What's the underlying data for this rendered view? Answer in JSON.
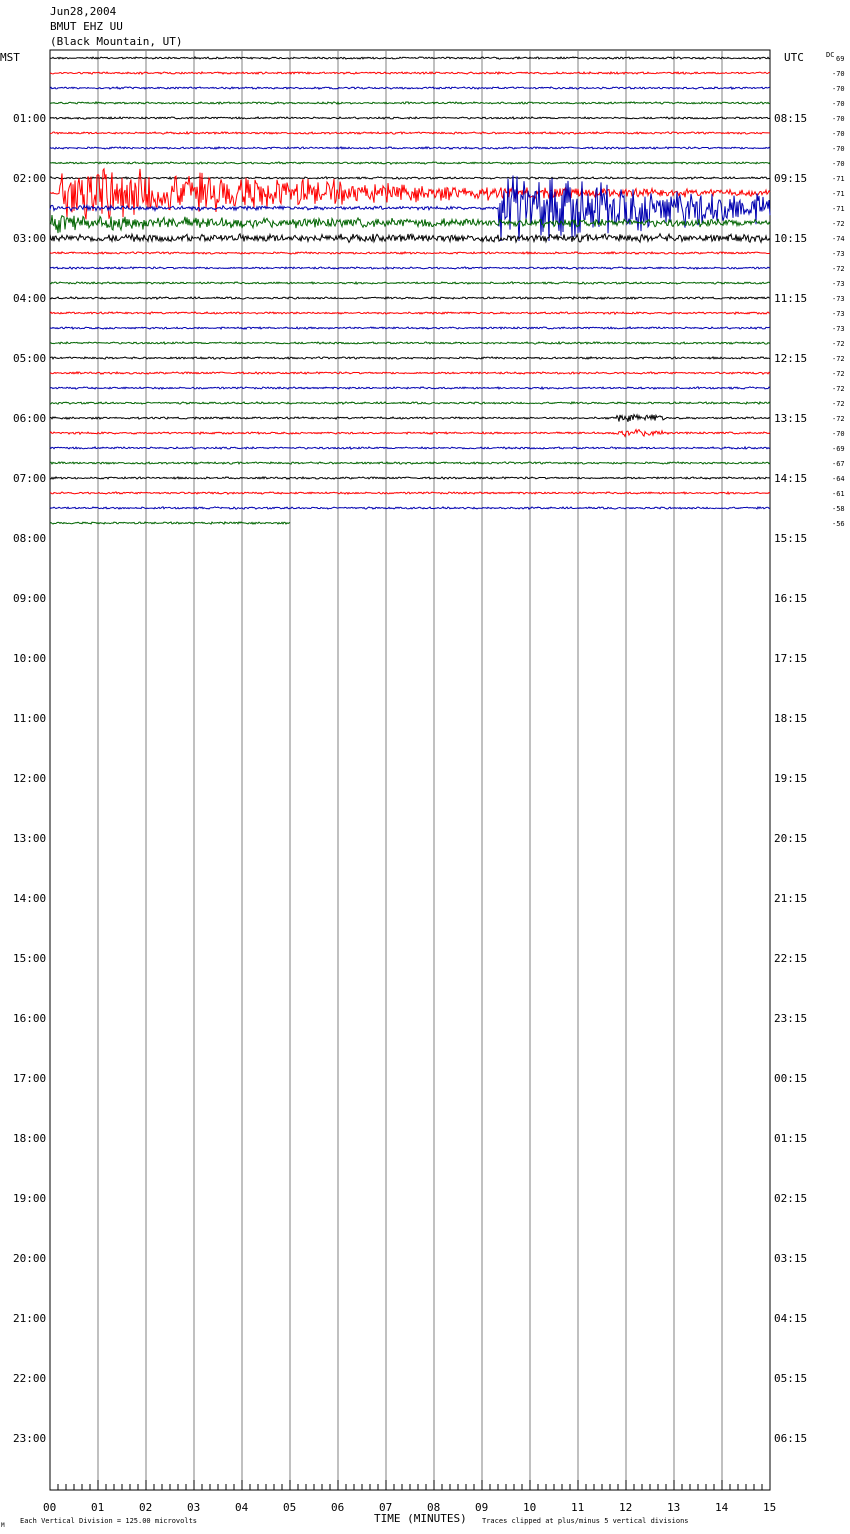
{
  "header": {
    "date": "Jun28,2004",
    "station": "BMUT EHZ UU",
    "location": "(Black Mountain, UT)"
  },
  "left_axis_label": "MST",
  "right_axis_label": "UTC",
  "dc_label": "DC",
  "dc_first": "69",
  "footer": {
    "scale_note": "Each Vertical Division =  125.00 microvolts",
    "time_label": "TIME (MINUTES)",
    "clip_note": "Traces clipped at plus/minus 5 vertical divisions",
    "corner_mark": "M"
  },
  "colors": {
    "black": "#000000",
    "red": "#ff0000",
    "blue": "#0000b0",
    "green": "#006400",
    "grid": "#808080"
  },
  "chart_data": {
    "type": "line",
    "title": "BMUT EHZ UU (Black Mountain, UT) Jun28,2004",
    "xlabel": "TIME (MINUTES)",
    "xlim": [
      0,
      15
    ],
    "x_ticks": [
      "00",
      "01",
      "02",
      "03",
      "04",
      "05",
      "06",
      "07",
      "08",
      "09",
      "10",
      "11",
      "12",
      "13",
      "14",
      "15"
    ],
    "rows_per_hour": 4,
    "trace_colors_cycle": [
      "black",
      "red",
      "blue",
      "green"
    ],
    "hours_mst": [
      "01:00",
      "02:00",
      "03:00",
      "04:00",
      "05:00",
      "06:00",
      "07:00",
      "08:00",
      "09:00",
      "10:00",
      "11:00",
      "12:00",
      "13:00",
      "14:00",
      "15:00",
      "16:00",
      "17:00",
      "18:00",
      "19:00",
      "20:00",
      "21:00",
      "22:00",
      "23:00"
    ],
    "hours_utc": [
      "08:15",
      "09:15",
      "10:15",
      "11:15",
      "12:15",
      "13:15",
      "14:15",
      "15:15",
      "16:15",
      "17:15",
      "18:15",
      "19:15",
      "20:15",
      "21:15",
      "22:15",
      "23:15",
      "00:15",
      "01:15",
      "02:15",
      "03:15",
      "04:15",
      "05:15",
      "06:15"
    ],
    "dc_offsets": [
      "-70",
      "-70",
      "-70",
      "-70",
      "-70",
      "-70",
      "-70",
      "-70",
      "-71",
      "-71",
      "-71",
      "-72",
      "-74",
      "-73",
      "-72",
      "-73",
      "-73",
      "-73",
      "-73",
      "-72",
      "-72",
      "-72",
      "-72",
      "-72",
      "-72",
      "-70",
      "-69",
      "-67",
      "-64",
      "-61",
      "-58",
      "-56"
    ],
    "last_row_end_minute": 5.0,
    "events": [
      {
        "start_row": 9,
        "start_minute": 0.2,
        "end_minute": 5.5,
        "peak_divisions": 5,
        "label": ""
      },
      {
        "start_row": 10,
        "start_minute": 9.35,
        "end_minute": 15,
        "peak_divisions": 5,
        "label": ""
      }
    ],
    "scale_microvolts_per_division": 125.0,
    "clip_divisions": 5
  }
}
